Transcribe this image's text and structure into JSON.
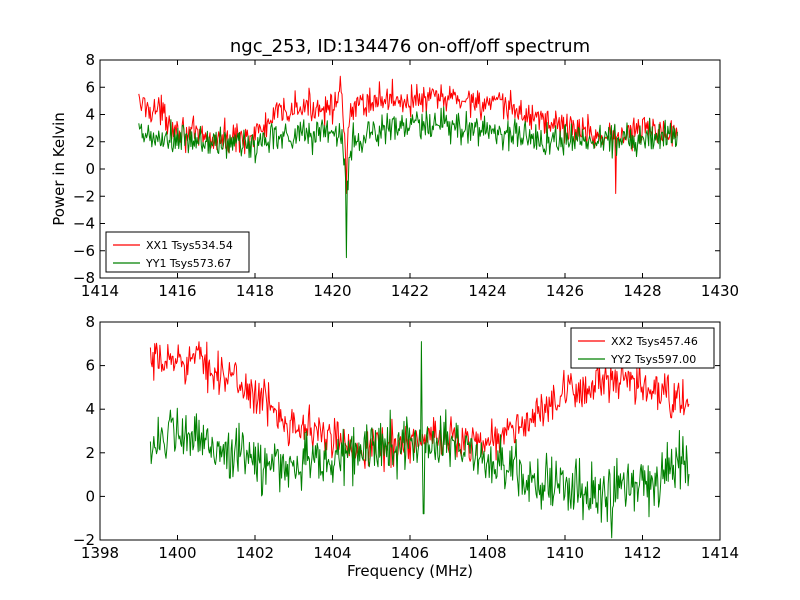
{
  "chart_data": [
    {
      "type": "line",
      "title": "ngc_253, ID:134476 on-off/off spectrum",
      "xlabel": "",
      "ylabel": "Power in Kelvin",
      "xlim": [
        1414,
        1430
      ],
      "ylim": [
        -8,
        8
      ],
      "xticks": [
        "1414",
        "1416",
        "1418",
        "1420",
        "1422",
        "1424",
        "1426",
        "1428",
        "1430"
      ],
      "yticks": [
        "8",
        "6",
        "4",
        "2",
        "0",
        "−2",
        "−4",
        "−6",
        "−8"
      ],
      "legend_position": "lower-left",
      "grid": false,
      "series": [
        {
          "name": "XX1 Tsys534.54",
          "color": "#ff0000",
          "x_start": 1415.0,
          "x_end": 1428.9,
          "profile": [
            [
              1415.0,
              4.8
            ],
            [
              1415.5,
              4.3
            ],
            [
              1416.0,
              3.0
            ],
            [
              1416.5,
              2.3
            ],
            [
              1417.0,
              2.1
            ],
            [
              1417.5,
              2.3
            ],
            [
              1418.0,
              2.5
            ],
            [
              1418.3,
              3.2
            ],
            [
              1418.6,
              4.0
            ],
            [
              1419.0,
              4.4
            ],
            [
              1419.5,
              4.5
            ],
            [
              1420.0,
              4.8
            ],
            [
              1420.25,
              4.6
            ],
            [
              1420.35,
              0.8
            ],
            [
              1420.45,
              3.6
            ],
            [
              1420.6,
              4.7
            ],
            [
              1421.0,
              5.0
            ],
            [
              1421.5,
              5.2
            ],
            [
              1422.0,
              5.0
            ],
            [
              1422.5,
              5.1
            ],
            [
              1423.0,
              5.2
            ],
            [
              1423.5,
              5.1
            ],
            [
              1424.0,
              4.8
            ],
            [
              1424.5,
              4.5
            ],
            [
              1425.0,
              4.0
            ],
            [
              1425.5,
              3.6
            ],
            [
              1426.0,
              3.1
            ],
            [
              1426.5,
              2.8
            ],
            [
              1427.0,
              2.4
            ],
            [
              1427.5,
              2.5
            ],
            [
              1428.0,
              2.9
            ],
            [
              1428.5,
              2.8
            ],
            [
              1428.9,
              2.8
            ]
          ],
          "noise": 0.9,
          "spikes": [
            [
              1420.35,
              -1.8
            ],
            [
              1420.2,
              6.8
            ],
            [
              1427.3,
              -1.8
            ]
          ]
        },
        {
          "name": "YY1 Tsys573.67",
          "color": "#008000",
          "x_start": 1415.0,
          "x_end": 1428.9,
          "profile": [
            [
              1415.0,
              2.5
            ],
            [
              1415.5,
              2.1
            ],
            [
              1416.0,
              2.1
            ],
            [
              1416.5,
              2.0
            ],
            [
              1417.0,
              1.9
            ],
            [
              1417.5,
              1.9
            ],
            [
              1418.0,
              1.7
            ],
            [
              1418.5,
              2.6
            ],
            [
              1419.0,
              2.5
            ],
            [
              1419.5,
              2.6
            ],
            [
              1420.0,
              2.8
            ],
            [
              1420.25,
              2.6
            ],
            [
              1420.35,
              -2.0
            ],
            [
              1420.5,
              1.8
            ],
            [
              1420.8,
              2.5
            ],
            [
              1421.5,
              3.0
            ],
            [
              1422.0,
              3.2
            ],
            [
              1423.0,
              3.1
            ],
            [
              1424.0,
              2.9
            ],
            [
              1424.5,
              2.6
            ],
            [
              1425.0,
              2.3
            ],
            [
              1426.0,
              2.1
            ],
            [
              1427.0,
              2.2
            ],
            [
              1428.0,
              2.4
            ],
            [
              1428.9,
              2.5
            ]
          ],
          "noise": 1.0,
          "spikes": [
            [
              1420.35,
              -6.5
            ]
          ]
        }
      ]
    },
    {
      "type": "line",
      "title": "",
      "xlabel": "Frequency (MHz)",
      "ylabel": "",
      "xlim": [
        1398,
        1414
      ],
      "ylim": [
        -2,
        8
      ],
      "xticks": [
        "1398",
        "1400",
        "1402",
        "1404",
        "1406",
        "1408",
        "1410",
        "1412",
        "1414"
      ],
      "yticks": [
        "8",
        "6",
        "4",
        "2",
        "0",
        "−2"
      ],
      "legend_position": "top-right",
      "grid": false,
      "series": [
        {
          "name": "XX2 Tsys457.46",
          "color": "#ff0000",
          "x_start": 1399.3,
          "x_end": 1413.2,
          "profile": [
            [
              1399.3,
              6.0
            ],
            [
              1400.0,
              6.3
            ],
            [
              1400.5,
              6.3
            ],
            [
              1401.0,
              5.8
            ],
            [
              1401.5,
              5.3
            ],
            [
              1402.0,
              4.7
            ],
            [
              1402.5,
              3.9
            ],
            [
              1403.0,
              3.4
            ],
            [
              1403.5,
              3.0
            ],
            [
              1404.0,
              2.6
            ],
            [
              1404.5,
              2.3
            ],
            [
              1405.0,
              2.3
            ],
            [
              1405.5,
              2.4
            ],
            [
              1406.0,
              2.5
            ],
            [
              1406.5,
              2.6
            ],
            [
              1407.0,
              2.7
            ],
            [
              1407.5,
              2.6
            ],
            [
              1408.0,
              2.5
            ],
            [
              1408.5,
              2.9
            ],
            [
              1409.0,
              3.4
            ],
            [
              1409.5,
              4.0
            ],
            [
              1410.0,
              4.6
            ],
            [
              1410.5,
              5.0
            ],
            [
              1411.0,
              5.2
            ],
            [
              1411.5,
              5.2
            ],
            [
              1412.0,
              5.0
            ],
            [
              1412.5,
              4.7
            ],
            [
              1413.2,
              4.2
            ]
          ],
          "noise": 0.75,
          "spikes": []
        },
        {
          "name": "YY2 Tsys597.00",
          "color": "#008000",
          "x_start": 1399.3,
          "x_end": 1413.2,
          "profile": [
            [
              1399.3,
              2.6
            ],
            [
              1400.0,
              2.7
            ],
            [
              1400.5,
              2.6
            ],
            [
              1401.0,
              2.3
            ],
            [
              1401.5,
              1.9
            ],
            [
              1402.0,
              1.6
            ],
            [
              1402.5,
              1.4
            ],
            [
              1403.0,
              1.5
            ],
            [
              1403.5,
              1.6
            ],
            [
              1404.0,
              1.7
            ],
            [
              1404.5,
              2.0
            ],
            [
              1405.0,
              2.2
            ],
            [
              1405.5,
              2.3
            ],
            [
              1406.0,
              2.5
            ],
            [
              1406.5,
              2.6
            ],
            [
              1407.0,
              2.4
            ],
            [
              1407.5,
              2.1
            ],
            [
              1408.0,
              1.7
            ],
            [
              1408.5,
              1.3
            ],
            [
              1409.0,
              0.9
            ],
            [
              1409.5,
              0.6
            ],
            [
              1410.0,
              0.3
            ],
            [
              1410.5,
              0.2
            ],
            [
              1411.0,
              0.2
            ],
            [
              1411.5,
              0.5
            ],
            [
              1412.0,
              0.8
            ],
            [
              1412.5,
              1.1
            ],
            [
              1413.2,
              1.6
            ]
          ],
          "noise": 1.0,
          "spikes": [
            [
              1406.3,
              7.1
            ],
            [
              1406.35,
              -0.8
            ],
            [
              1411.2,
              -1.9
            ]
          ]
        }
      ]
    }
  ]
}
